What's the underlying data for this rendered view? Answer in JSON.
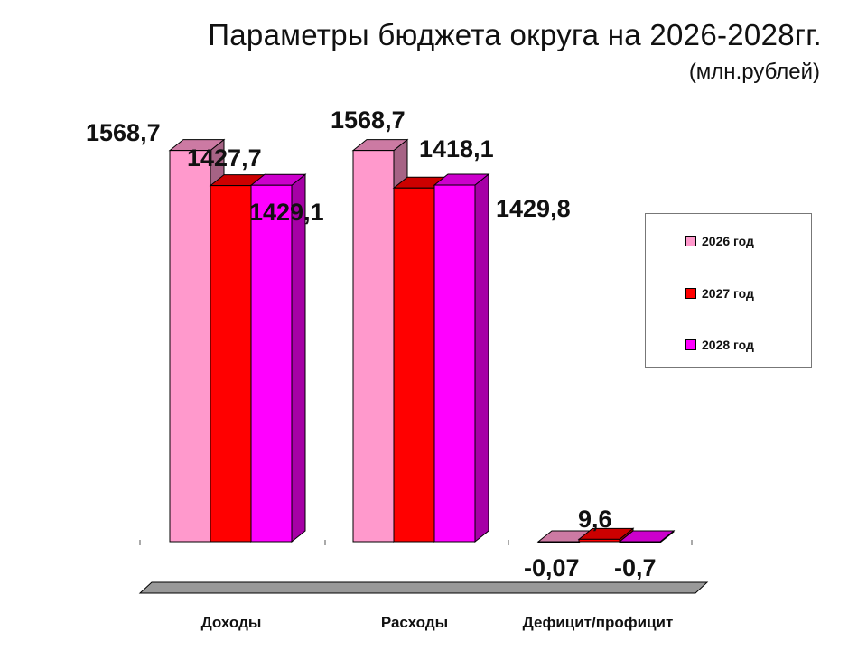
{
  "title": "Параметры бюджета округа на 2026-2028гг.",
  "subtitle": "(млн.рублей)",
  "chart_data": {
    "type": "bar",
    "categories": [
      "Доходы",
      "Расходы",
      "Дефицит/профицит"
    ],
    "series": [
      {
        "name": "2026 год",
        "color": "#ff99cc",
        "values": [
          1568.7,
          1568.7,
          -0.07
        ]
      },
      {
        "name": "2027 год",
        "color": "#ff0000",
        "values": [
          1427.7,
          1418.1,
          9.6
        ]
      },
      {
        "name": "2028 год",
        "color": "#ff00ff",
        "values": [
          1429.1,
          1429.8,
          -0.7
        ]
      }
    ],
    "data_labels": [
      [
        "1568,7",
        "1427,7",
        "1429,1"
      ],
      [
        "1568,7",
        "1418,1",
        "1429,8"
      ],
      [
        "-0,07",
        "9,6",
        "-0,7"
      ]
    ],
    "ylim": [
      0,
      1600
    ],
    "grid": false,
    "legend": "right",
    "chart_style": "3d-clustered-column"
  }
}
